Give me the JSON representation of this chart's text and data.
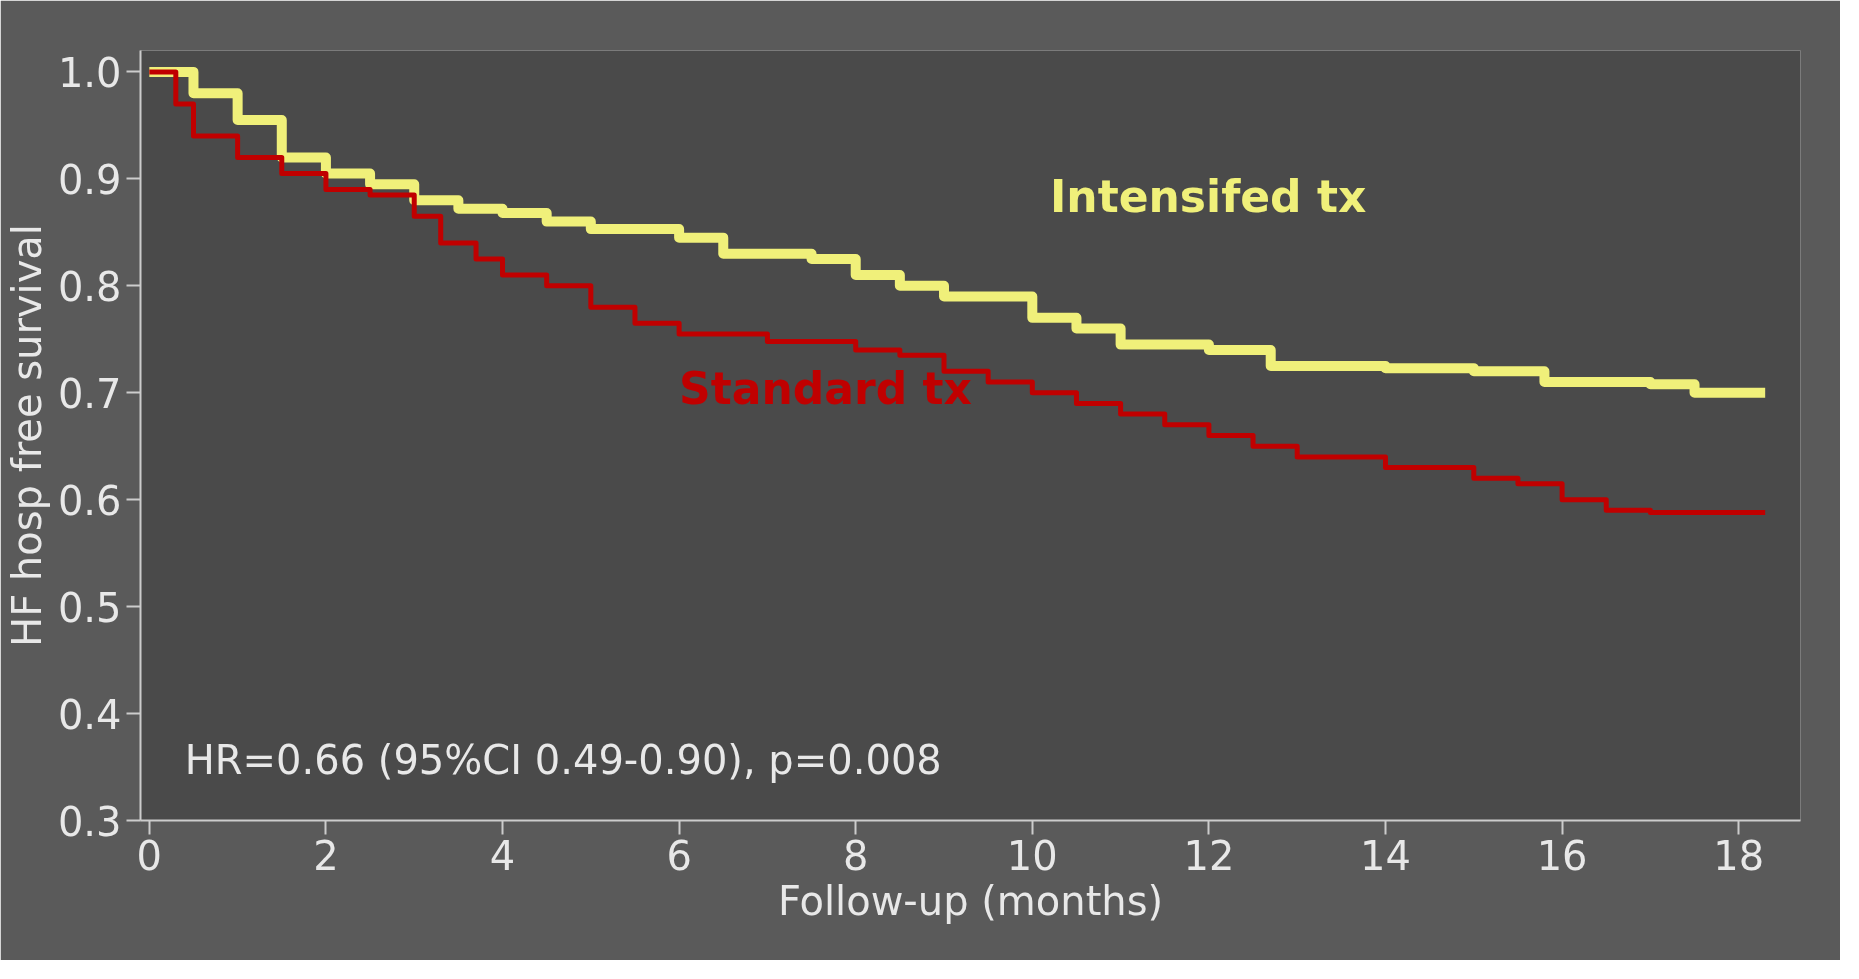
{
  "chart_data": {
    "type": "step",
    "xlabel": "Follow-up (months)",
    "ylabel": "HF hosp free survival",
    "xlim": [
      -0.1,
      18.7
    ],
    "ylim": [
      0.3,
      1.02
    ],
    "xticks": [
      0,
      2,
      4,
      6,
      8,
      10,
      12,
      14,
      16,
      18
    ],
    "yticks": [
      {
        "value": 0.3,
        "label": "0.3"
      },
      {
        "value": 0.4,
        "label": "0.4"
      },
      {
        "value": 0.5,
        "label": "0.5"
      },
      {
        "value": 0.6,
        "label": "0.6"
      },
      {
        "value": 0.7,
        "label": "0.7"
      },
      {
        "value": 0.8,
        "label": "0.8"
      },
      {
        "value": 0.9,
        "label": "0.9"
      },
      {
        "value": 1.0,
        "label": "1.0"
      }
    ],
    "grid": false,
    "legend": false,
    "series": [
      {
        "name": "Intensifed tx",
        "color": "#f0f07a",
        "x": [
          0,
          0.5,
          1,
          1.5,
          2,
          2.5,
          3,
          3.5,
          4,
          4.5,
          5,
          6,
          6.5,
          7.5,
          8,
          8.5,
          9,
          10,
          10.5,
          11,
          12,
          12.7,
          14,
          15,
          15.8,
          17,
          17.5,
          18.3
        ],
        "values": [
          1.0,
          0.98,
          0.955,
          0.92,
          0.905,
          0.895,
          0.88,
          0.872,
          0.868,
          0.86,
          0.853,
          0.845,
          0.83,
          0.825,
          0.81,
          0.8,
          0.79,
          0.77,
          0.76,
          0.745,
          0.74,
          0.725,
          0.723,
          0.72,
          0.71,
          0.708,
          0.7,
          0.7
        ]
      },
      {
        "name": "Standard tx",
        "color": "#c00000",
        "x": [
          0,
          0.3,
          0.5,
          1,
          1.5,
          2,
          2.5,
          3,
          3.3,
          3.7,
          4,
          4.5,
          5,
          5.5,
          6,
          7,
          8,
          8.5,
          9,
          9.5,
          10,
          10.5,
          11,
          11.5,
          12,
          12.5,
          13,
          14,
          15,
          15.5,
          16,
          16.5,
          17,
          18.3
        ],
        "values": [
          1.0,
          0.97,
          0.94,
          0.92,
          0.905,
          0.89,
          0.885,
          0.865,
          0.84,
          0.825,
          0.81,
          0.8,
          0.78,
          0.765,
          0.755,
          0.748,
          0.74,
          0.735,
          0.72,
          0.71,
          0.7,
          0.69,
          0.68,
          0.67,
          0.66,
          0.65,
          0.64,
          0.63,
          0.62,
          0.615,
          0.6,
          0.59,
          0.588,
          0.588
        ]
      }
    ],
    "annotations": [
      "HR=0.66 (95%CI 0.49-0.90), p=0.008"
    ]
  }
}
